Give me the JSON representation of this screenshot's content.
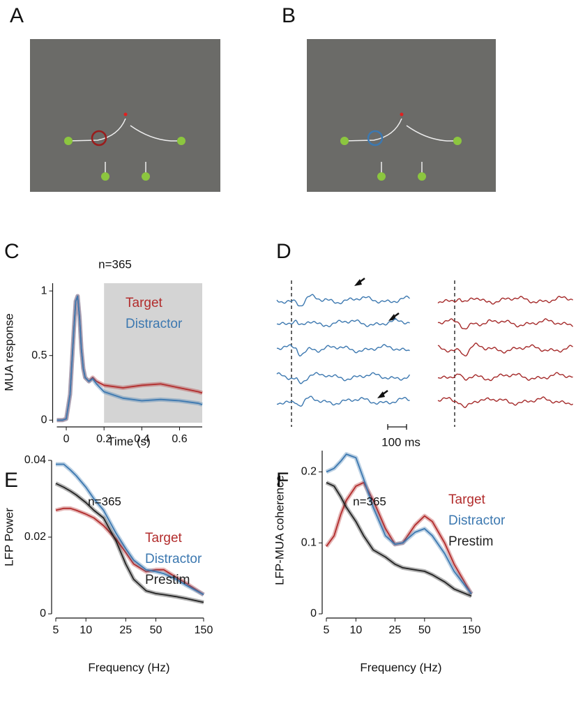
{
  "panels": [
    "A",
    "B",
    "C",
    "D",
    "E",
    "F"
  ],
  "traces": {
    "scale_bar": "100 ms"
  },
  "chart_data": [
    {
      "type": "line",
      "title": "n=365",
      "x_label": "Time (s)",
      "y_label": "MUA response",
      "x": [
        -0.05,
        -0.02,
        0,
        0.02,
        0.04,
        0.05,
        0.06,
        0.07,
        0.08,
        0.09,
        0.1,
        0.12,
        0.14,
        0.16,
        0.2,
        0.3,
        0.4,
        0.5,
        0.6,
        0.7,
        0.72
      ],
      "xlim": [
        -0.05,
        0.72
      ],
      "xticks": [
        0,
        0.2,
        0.4,
        0.6
      ],
      "ylim": [
        -0.02,
        1.06
      ],
      "yticks": [
        0,
        0.5,
        1
      ],
      "log_x": false,
      "highlight_x": [
        0.2,
        0.72
      ],
      "series": [
        {
          "name": "Target",
          "color": "#b22c2c",
          "values": [
            0,
            0,
            0.01,
            0.2,
            0.7,
            0.92,
            0.96,
            0.8,
            0.55,
            0.4,
            0.33,
            0.3,
            0.33,
            0.3,
            0.27,
            0.25,
            0.27,
            0.28,
            0.25,
            0.22,
            0.21
          ]
        },
        {
          "name": "Distractor",
          "color": "#3c78b0",
          "values": [
            0,
            0,
            0.01,
            0.2,
            0.7,
            0.92,
            0.96,
            0.8,
            0.55,
            0.4,
            0.33,
            0.3,
            0.32,
            0.28,
            0.22,
            0.17,
            0.15,
            0.16,
            0.15,
            0.13,
            0.12
          ]
        }
      ]
    },
    {
      "type": "line",
      "title": "n=365",
      "x_label": "Frequency (Hz)",
      "y_label": "LFP Power",
      "x": [
        5,
        6,
        7,
        8,
        10,
        12,
        15,
        20,
        25,
        30,
        40,
        50,
        60,
        80,
        100,
        150
      ],
      "xlim": [
        5,
        150
      ],
      "xticks": [
        5,
        10,
        25,
        50,
        150
      ],
      "ylim": [
        0,
        0.04
      ],
      "yticks": [
        0,
        0.02,
        0.04
      ],
      "log_x": true,
      "series": [
        {
          "name": "Target",
          "color": "#b22c2c",
          "values": [
            0.027,
            0.0275,
            0.0275,
            0.027,
            0.026,
            0.025,
            0.023,
            0.0195,
            0.016,
            0.013,
            0.011,
            0.0115,
            0.0115,
            0.0095,
            0.008,
            0.005
          ]
        },
        {
          "name": "Distractor",
          "color": "#3c78b0",
          "values": [
            0.039,
            0.039,
            0.0375,
            0.036,
            0.033,
            0.03,
            0.027,
            0.021,
            0.017,
            0.014,
            0.0115,
            0.011,
            0.0105,
            0.009,
            0.0075,
            0.005
          ]
        },
        {
          "name": "Prestim",
          "color": "#222222",
          "values": [
            0.034,
            0.033,
            0.032,
            0.031,
            0.029,
            0.027,
            0.025,
            0.019,
            0.013,
            0.009,
            0.006,
            0.0053,
            0.005,
            0.0045,
            0.004,
            0.003
          ]
        }
      ]
    },
    {
      "type": "line",
      "title": "n=365",
      "x_label": "Frequency (Hz)",
      "y_label": "LFP-MUA coherence",
      "x": [
        5,
        6,
        7,
        8,
        10,
        12,
        15,
        20,
        25,
        30,
        40,
        50,
        60,
        80,
        100,
        150
      ],
      "xlim": [
        5,
        150
      ],
      "xticks": [
        5,
        10,
        25,
        50,
        150
      ],
      "ylim": [
        0,
        0.23
      ],
      "yticks": [
        0,
        0.1,
        0.2
      ],
      "log_x": true,
      "series": [
        {
          "name": "Target",
          "color": "#b22c2c",
          "values": [
            0.095,
            0.11,
            0.14,
            0.16,
            0.18,
            0.185,
            0.16,
            0.12,
            0.098,
            0.1,
            0.125,
            0.138,
            0.13,
            0.1,
            0.07,
            0.028
          ]
        },
        {
          "name": "Distractor",
          "color": "#3c78b0",
          "values": [
            0.2,
            0.205,
            0.215,
            0.225,
            0.22,
            0.19,
            0.15,
            0.11,
            0.098,
            0.1,
            0.115,
            0.12,
            0.11,
            0.085,
            0.06,
            0.028
          ]
        },
        {
          "name": "Prestim",
          "color": "#222222",
          "values": [
            0.185,
            0.18,
            0.165,
            0.15,
            0.13,
            0.11,
            0.09,
            0.08,
            0.07,
            0.065,
            0.062,
            0.06,
            0.055,
            0.045,
            0.035,
            0.025
          ]
        }
      ]
    }
  ]
}
